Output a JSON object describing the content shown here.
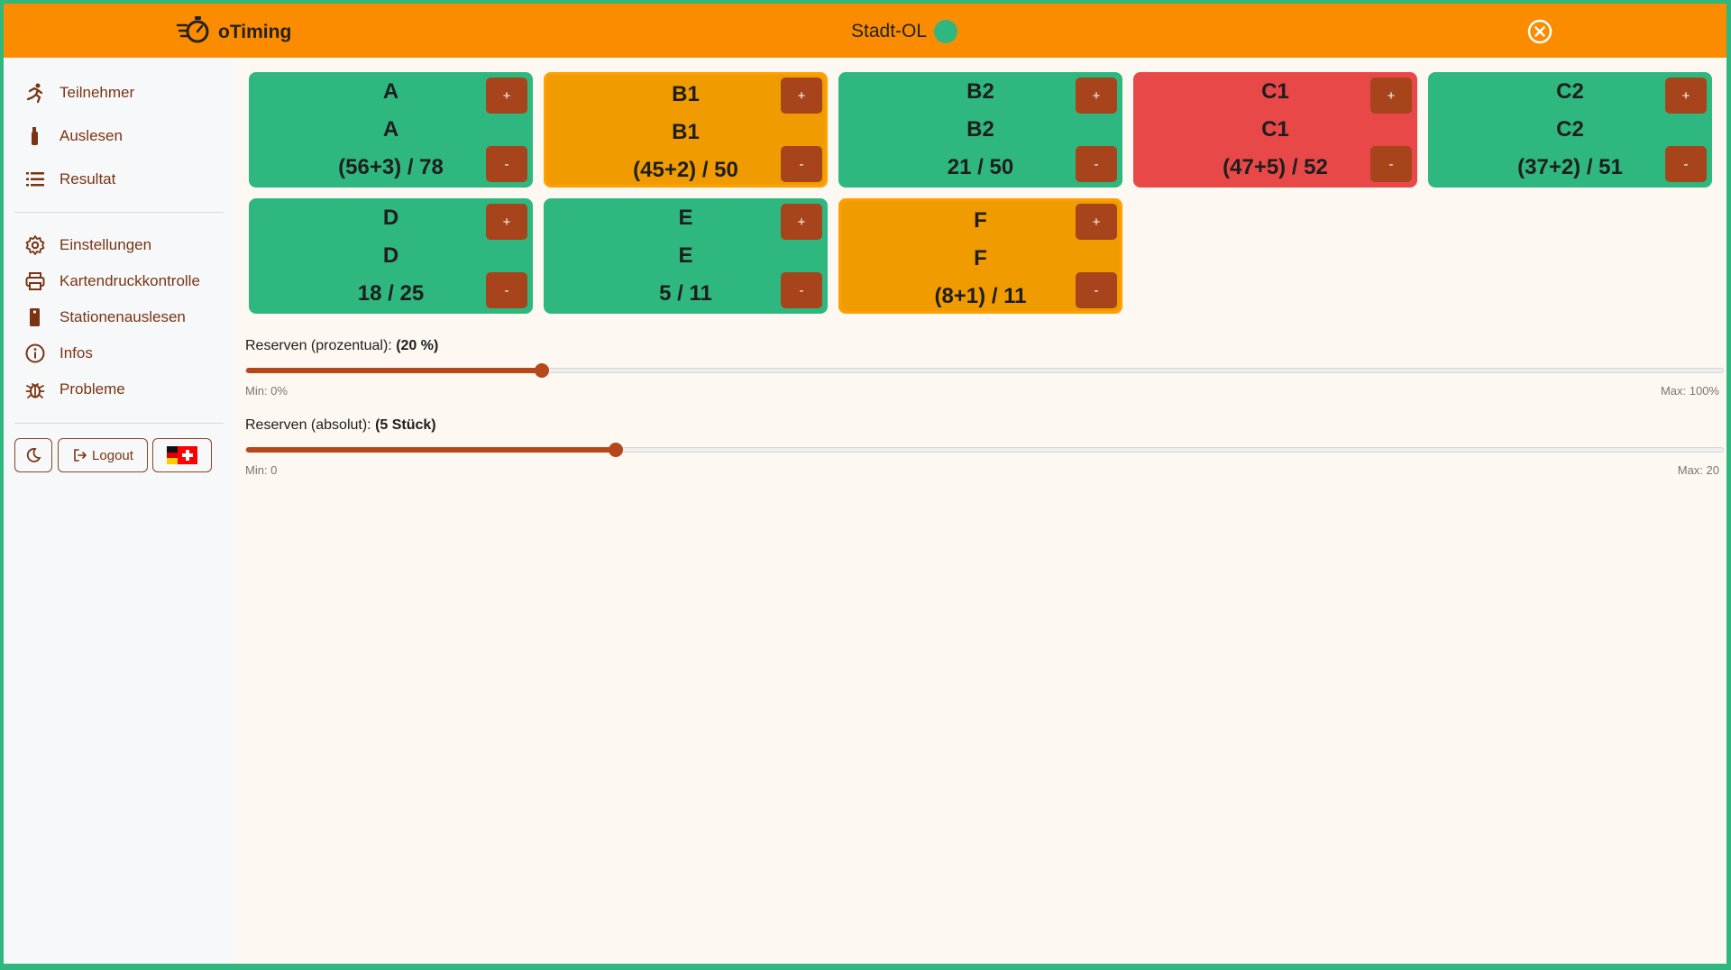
{
  "app": {
    "name": "oTiming",
    "event": "Stadt-OL"
  },
  "colors": {
    "accent": "#fb8c00",
    "green": "#2eb87f",
    "orange": "#f09c00",
    "red": "#e84848",
    "button": "#a8441c"
  },
  "nav": {
    "items": [
      {
        "label": "Teilnehmer",
        "icon": "runner-icon"
      },
      {
        "label": "Auslesen",
        "icon": "si-stick-icon"
      },
      {
        "label": "Resultat",
        "icon": "list-icon"
      },
      {
        "label": "Einstellungen",
        "icon": "gear-icon"
      },
      {
        "label": "Kartendruckkontrolle",
        "icon": "printer-icon"
      },
      {
        "label": "Stationenauslesen",
        "icon": "station-icon"
      },
      {
        "label": "Infos",
        "icon": "info-icon"
      },
      {
        "label": "Probleme",
        "icon": "bug-icon"
      }
    ],
    "logout_label": "Logout"
  },
  "cards": [
    {
      "line1": "A",
      "line2": "A",
      "count": "(56+3) / 78",
      "status": "green"
    },
    {
      "line1": "B1",
      "line2": "B1",
      "count": "(45+2) / 50",
      "status": "orange"
    },
    {
      "line1": "B2",
      "line2": "B2",
      "count": "21 / 50",
      "status": "green"
    },
    {
      "line1": "C1",
      "line2": "C1",
      "count": "(47+5) / 52",
      "status": "red"
    },
    {
      "line1": "C2",
      "line2": "C2",
      "count": "(37+2) / 51",
      "status": "green"
    },
    {
      "line1": "D",
      "line2": "D",
      "count": "18 / 25",
      "status": "green"
    },
    {
      "line1": "E",
      "line2": "E",
      "count": "5 / 11",
      "status": "green"
    },
    {
      "line1": "F",
      "line2": "F",
      "count": "(8+1) / 11",
      "status": "orange"
    }
  ],
  "card_buttons": {
    "plus": "+",
    "minus": "-"
  },
  "sliders": {
    "percent": {
      "label": "Reserven (prozentual): ",
      "value_label": "(20 %)",
      "value": 20,
      "min": 0,
      "max": 100,
      "min_label": "Min: 0%",
      "max_label": "Max: 100%"
    },
    "absolute": {
      "label": "Reserven (absolut): ",
      "value_label": "(5 Stück)",
      "value": 5,
      "min": 0,
      "max": 20,
      "min_label": "Min: 0",
      "max_label": "Max: 20"
    }
  }
}
